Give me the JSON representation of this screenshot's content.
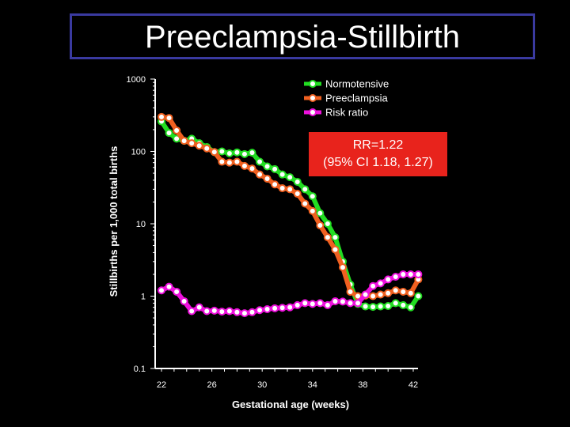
{
  "chart_data": {
    "type": "line",
    "title": "Preeclampsia-Stillbirth",
    "xlabel": "Gestational age (weeks)",
    "ylabel": "Stillbirths per 1,000 total births",
    "yscale": "log",
    "ylim": [
      0.1,
      1000
    ],
    "yticks": [
      {
        "value": 0.1,
        "label": "0.1"
      },
      {
        "value": 1,
        "label": "1"
      },
      {
        "value": 10,
        "label": "10"
      },
      {
        "value": 100,
        "label": "100"
      },
      {
        "value": 1000,
        "label": "1000"
      }
    ],
    "xlim": [
      22,
      42
    ],
    "xticks": [
      {
        "value": 22,
        "label": "22"
      },
      {
        "value": 26,
        "label": "26"
      },
      {
        "value": 30,
        "label": "30"
      },
      {
        "value": 34,
        "label": "34"
      },
      {
        "value": 38,
        "label": "38"
      },
      {
        "value": 42,
        "label": "42"
      }
    ],
    "x": [
      22,
      22.6,
      23.2,
      23.8,
      24.4,
      25,
      25.6,
      26.2,
      26.8,
      27.4,
      28,
      28.6,
      29.2,
      29.8,
      30.4,
      31,
      31.6,
      32.2,
      32.8,
      33.4,
      34,
      34.6,
      35.2,
      35.8,
      36.4,
      37,
      37.6,
      38.2,
      38.8,
      39.4,
      40,
      40.6,
      41.2,
      41.8,
      42.4
    ],
    "series": [
      {
        "name": "Normotensive",
        "color": "#22dd22",
        "values": [
          260,
          180,
          150,
          140,
          150,
          130,
          115,
          98,
          100,
          94,
          97,
          92,
          96,
          72,
          62,
          57,
          48,
          44,
          38,
          30,
          24,
          14,
          10,
          6.5,
          3.0,
          1.45,
          0.78,
          0.72,
          0.71,
          0.72,
          0.73,
          0.8,
          0.75,
          0.7,
          1.0
        ]
      },
      {
        "name": "Preeclampsia",
        "color": "#f06020",
        "values": [
          300,
          290,
          195,
          140,
          130,
          120,
          110,
          98,
          72,
          70,
          72,
          63,
          58,
          48,
          42,
          35,
          31,
          30,
          26,
          19,
          15,
          9.5,
          6.5,
          4.4,
          2.5,
          1.15,
          1.0,
          1.02,
          1.0,
          1.05,
          1.1,
          1.2,
          1.15,
          1.1,
          1.7
        ]
      },
      {
        "name": "Risk ratio",
        "color": "#ee11dd",
        "values": [
          1.2,
          1.35,
          1.15,
          0.85,
          0.62,
          0.7,
          0.62,
          0.63,
          0.61,
          0.62,
          0.6,
          0.58,
          0.6,
          0.64,
          0.66,
          0.68,
          0.69,
          0.7,
          0.75,
          0.8,
          0.78,
          0.8,
          0.75,
          0.85,
          0.84,
          0.8,
          0.8,
          1.05,
          1.38,
          1.5,
          1.7,
          1.85,
          2.0,
          2.0,
          2.0
        ]
      }
    ],
    "legend": {
      "position": "top-right",
      "entries": [
        "Normotensive",
        "Preeclampsia",
        "Risk ratio"
      ]
    },
    "annotations": [
      {
        "text_line1": "RR=1.22",
        "text_line2": "(95% CI 1.18, 1.27)",
        "color": "#e8231c"
      }
    ]
  }
}
